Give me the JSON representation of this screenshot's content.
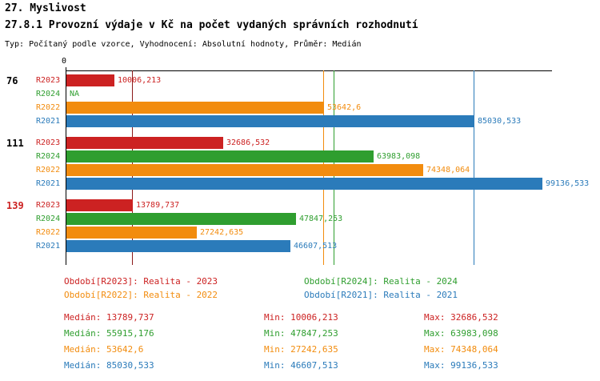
{
  "title": "27. Myslivost",
  "subtitle": "27.8.1 Provozní výdaje v Kč na počet vydaných správních rozhodnutí",
  "meta_line": "Typ: Počítaný podle vzorce, Vyhodnocení: Absolutní hodnoty, Průměr: Medián",
  "colors": {
    "R2023": "#cc2222",
    "R2024": "#2f9e2f",
    "R2022": "#f28c0e",
    "R2021": "#2b7bba",
    "R2023_line": "#8b1a1a",
    "axis": "#000000"
  },
  "chart_data": {
    "type": "bar",
    "orientation": "horizontal",
    "x_origin_label": "0",
    "xlim": [
      0,
      101333
    ],
    "grid": false,
    "groups": [
      {
        "label": "76",
        "label_color": "#000000",
        "bars": [
          {
            "series": "R2023",
            "value": 10006.213,
            "value_label": "10006,213"
          },
          {
            "series": "R2024",
            "value": null,
            "value_label": "NA"
          },
          {
            "series": "R2022",
            "value": 53642.6,
            "value_label": "53642,6"
          },
          {
            "series": "R2021",
            "value": 85030.533,
            "value_label": "85030,533"
          }
        ]
      },
      {
        "label": "111",
        "label_color": "#000000",
        "bars": [
          {
            "series": "R2023",
            "value": 32686.532,
            "value_label": "32686,532"
          },
          {
            "series": "R2024",
            "value": 63983.098,
            "value_label": "63983,098"
          },
          {
            "series": "R2022",
            "value": 74348.064,
            "value_label": "74348,064"
          },
          {
            "series": "R2021",
            "value": 99136.533,
            "value_label": "99136,533"
          }
        ]
      },
      {
        "label": "139",
        "label_color": "#cc2222",
        "bars": [
          {
            "series": "R2023",
            "value": 13789.737,
            "value_label": "13789,737"
          },
          {
            "series": "R2024",
            "value": 47847.253,
            "value_label": "47847,253"
          },
          {
            "series": "R2022",
            "value": 27242.635,
            "value_label": "27242,635"
          },
          {
            "series": "R2021",
            "value": 46607.513,
            "value_label": "46607,513"
          }
        ]
      }
    ],
    "median_lines": [
      {
        "series": "R2023",
        "value": 13789.737
      },
      {
        "series": "R2022",
        "value": 53642.6
      },
      {
        "series": "R2024",
        "value": 55915.176
      },
      {
        "series": "R2021",
        "value": 85030.533
      }
    ]
  },
  "legend": {
    "left": [
      {
        "series": "R2023",
        "text": "Období[R2023]: Realita - 2023"
      },
      {
        "series": "R2022",
        "text": "Období[R2022]: Realita - 2022"
      }
    ],
    "right": [
      {
        "series": "R2024",
        "text": "Období[R2024]: Realita - 2024"
      },
      {
        "series": "R2021",
        "text": "Období[R2021]: Realita - 2021"
      }
    ]
  },
  "stats": [
    {
      "series": "R2023",
      "median": "Medián: 13789,737",
      "min": "Min: 10006,213",
      "max": "Max: 32686,532"
    },
    {
      "series": "R2024",
      "median": "Medián: 55915,176",
      "min": "Min: 47847,253",
      "max": "Max: 63983,098"
    },
    {
      "series": "R2022",
      "median": "Medián: 53642,6",
      "min": "Min: 27242,635",
      "max": "Max: 74348,064"
    },
    {
      "series": "R2021",
      "median": "Medián: 85030,533",
      "min": "Min: 46607,513",
      "max": "Max: 99136,533"
    }
  ]
}
